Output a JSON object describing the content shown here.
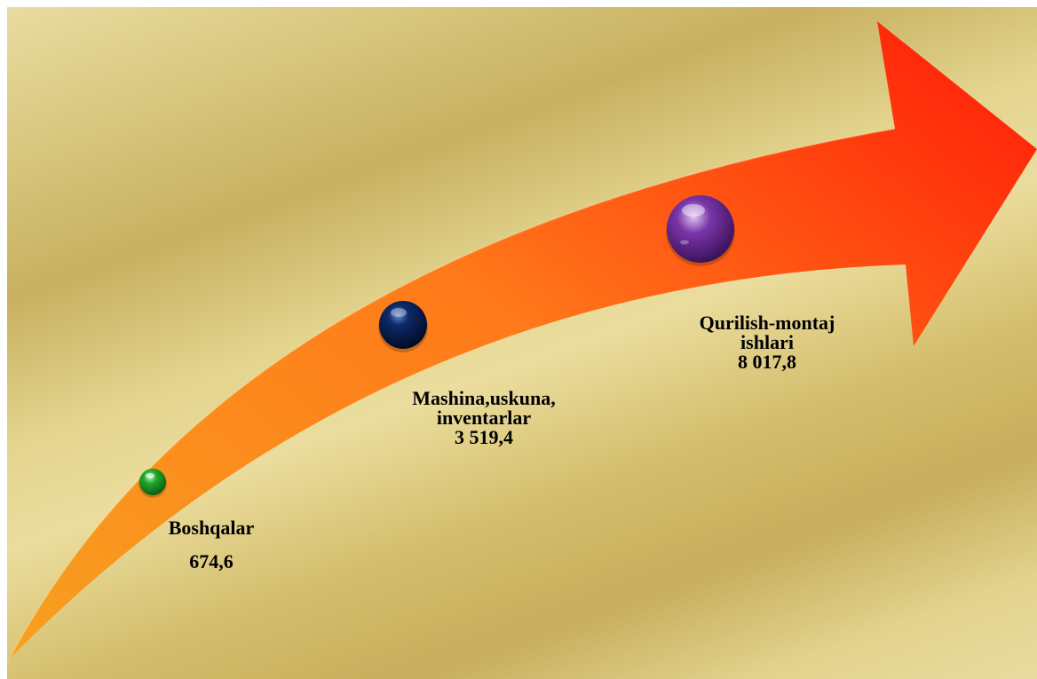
{
  "colors": {
    "arrow_start": "#f7a020",
    "arrow_mid": "#ff7a1a",
    "arrow_end": "#ff2a0a",
    "node_small": "#1faa2a",
    "node_medium": "#0c2a6a",
    "node_large": "#7a35a8",
    "text": "#000000"
  },
  "items": [
    {
      "name_lines": [
        "Boshqalar"
      ],
      "value_text": "674,6",
      "value": 674.6,
      "node_color_key": "node_small",
      "node_icon": "green-sphere-icon"
    },
    {
      "name_lines": [
        "Mashina,uskuna,",
        "inventarlar"
      ],
      "value_text": "3 519,4",
      "value": 3519.4,
      "node_color_key": "node_medium",
      "node_icon": "navy-sphere-icon"
    },
    {
      "name_lines": [
        "Qurilish-montaj",
        "ishlari"
      ],
      "value_text": "8 017,8",
      "value": 8017.8,
      "node_color_key": "node_large",
      "node_icon": "purple-sphere-icon"
    }
  ]
}
